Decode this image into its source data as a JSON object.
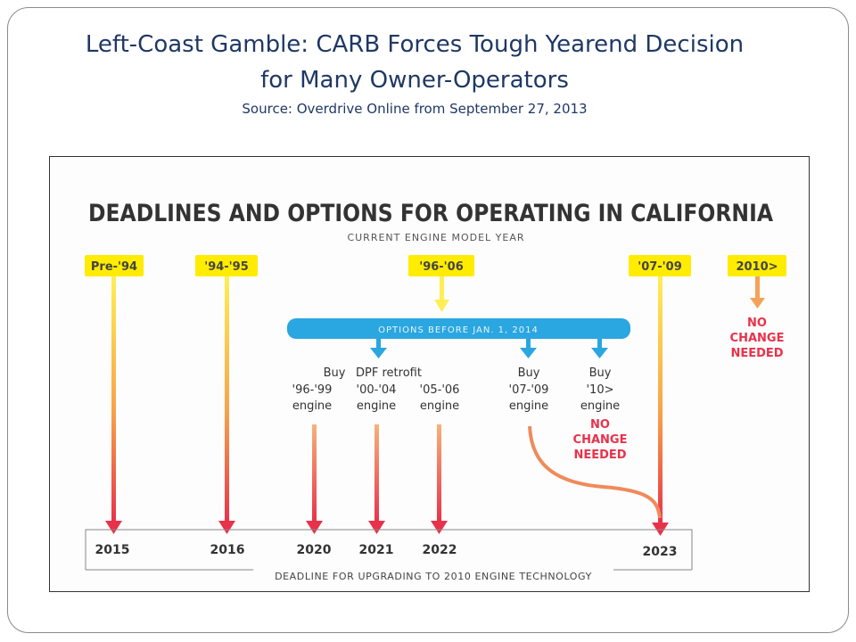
{
  "slide": {
    "title_line1": "Left-Coast Gamble: CARB Forces Tough Yearend Decision",
    "title_line2": "for Many Owner-Operators",
    "source": "Source: Overdrive Online from September 27, 2013"
  },
  "figure": {
    "heading": "DEADLINES AND OPTIONS FOR OPERATING IN CALIFORNIA",
    "subheading": "CURRENT ENGINE MODEL YEAR",
    "model_years": [
      "Pre-'94",
      "'94-'95",
      "'96-'06",
      "'07-'09",
      "2010>"
    ],
    "options_banner": "OPTIONS BEFORE JAN. 1, 2014",
    "buy_label": "Buy",
    "dpf_label": "DPF retrofit",
    "options": {
      "o96_99": "'96-'99",
      "o00_04": "'00-'04",
      "o05_06": "'05-'06",
      "o07_09": "'07-'09",
      "o10": "'10>",
      "engine": "engine"
    },
    "no_change": "NO CHANGE NEEDED",
    "no_change_line1": "NO",
    "no_change_line2": "CHANGE",
    "no_change_line3": "NEEDED",
    "deadlines": [
      "2015",
      "2016",
      "2020",
      "2021",
      "2022",
      "2023"
    ],
    "footer": "DEADLINE FOR UPGRADING TO 2010 ENGINE TECHNOLOGY"
  },
  "colors": {
    "title": "#1f3864",
    "tag_yellow": "#ffec00",
    "banner_blue": "#2aa6e0",
    "arrow_red": "#e8324a",
    "arrow_orange": "#f4a259",
    "no_change_red": "#e8324a"
  }
}
